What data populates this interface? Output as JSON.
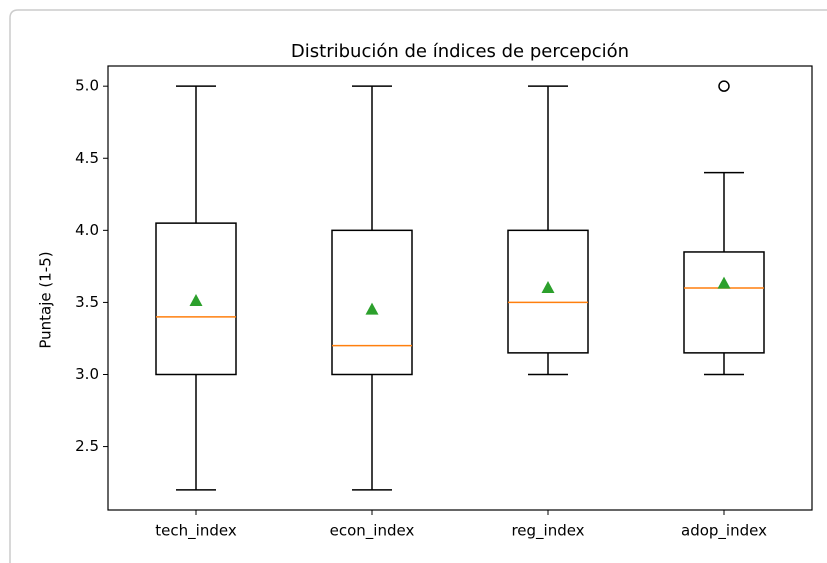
{
  "chart_data": {
    "type": "box",
    "title": "Distribución de índices de percepción",
    "ylabel": "Puntaje (1-5)",
    "categories": [
      "tech_index",
      "econ_index",
      "reg_index",
      "adop_index"
    ],
    "boxes": [
      {
        "whislo": 2.2,
        "q1": 3.0,
        "med": 3.4,
        "q3": 4.05,
        "whishi": 5.0,
        "mean": 3.51,
        "fliers": []
      },
      {
        "whislo": 2.2,
        "q1": 3.0,
        "med": 3.2,
        "q3": 4.0,
        "whishi": 5.0,
        "mean": 3.45,
        "fliers": []
      },
      {
        "whislo": 3.0,
        "q1": 3.15,
        "med": 3.5,
        "q3": 4.0,
        "whishi": 5.0,
        "mean": 3.6,
        "fliers": []
      },
      {
        "whislo": 3.0,
        "q1": 3.15,
        "med": 3.6,
        "q3": 3.85,
        "whishi": 4.4,
        "mean": 3.63,
        "fliers": [
          5.0
        ]
      }
    ],
    "median_color": "#ff7f0e",
    "mean_color": "#2ca02c",
    "ylim": [
      2.06,
      5.14
    ],
    "yticks": [
      {
        "value": 2.5,
        "label": "2.5"
      },
      {
        "value": 3,
        "label": "3.0"
      },
      {
        "value": 3.5,
        "label": "3.5"
      },
      {
        "value": 4,
        "label": "4.0"
      },
      {
        "value": 4.5,
        "label": "4.5"
      },
      {
        "value": 5,
        "label": "5.0"
      }
    ]
  }
}
